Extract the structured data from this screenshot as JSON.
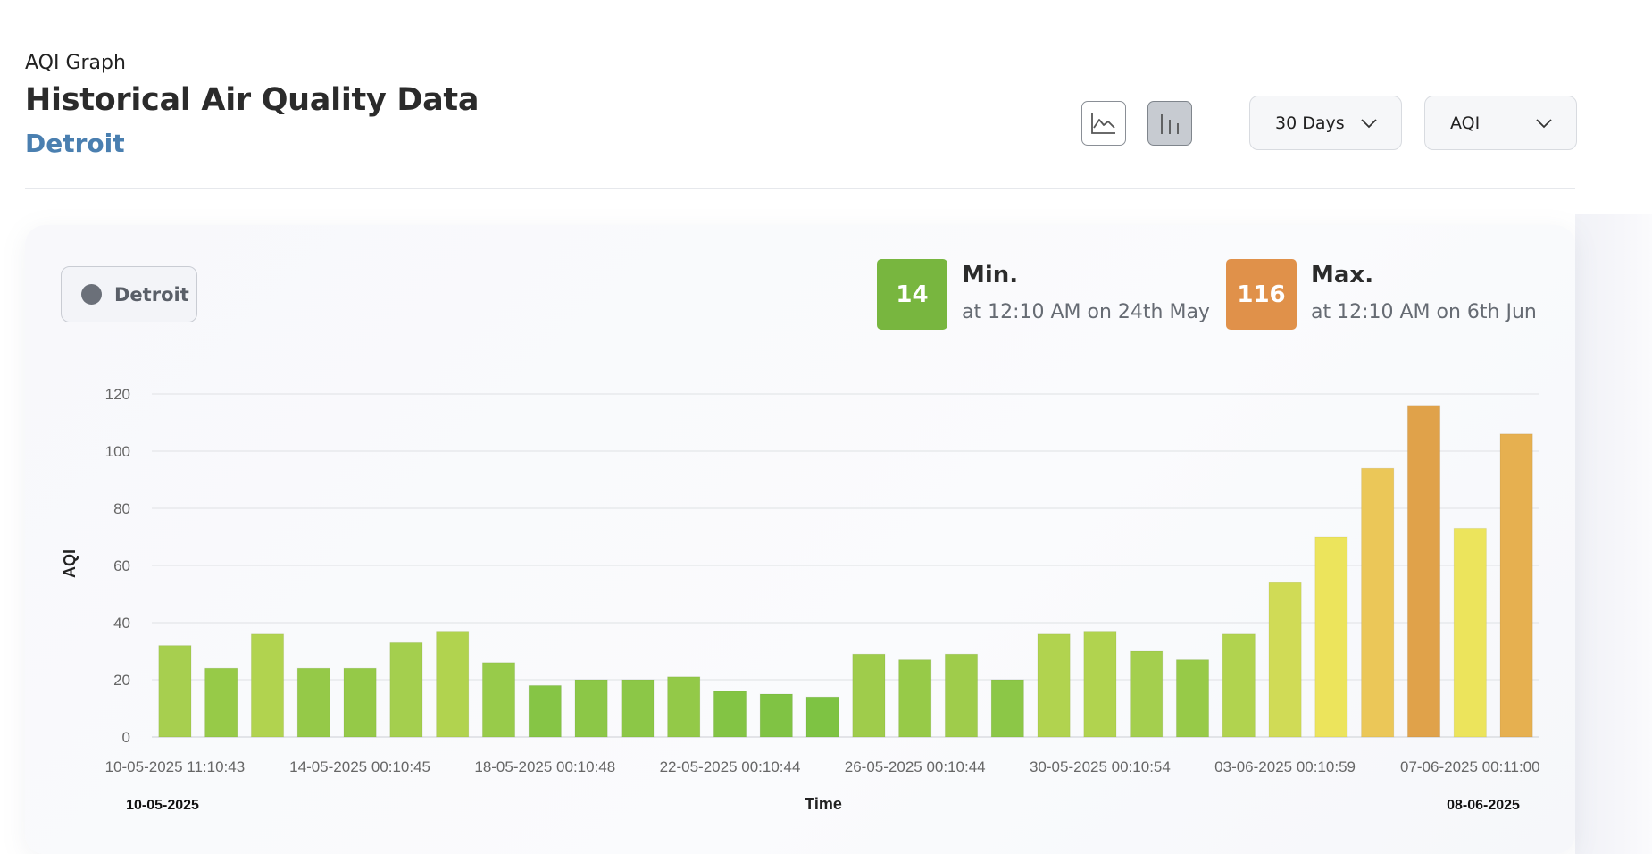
{
  "header": {
    "overline": "AQI Graph",
    "title": "Historical Air Quality Data",
    "city": "Detroit"
  },
  "controls": {
    "line_chart_icon": "line-chart-icon",
    "bar_chart_icon": "bar-chart-icon",
    "range_select": "30 Days",
    "metric_select": "AQI"
  },
  "legend": {
    "label": "Detroit",
    "color": "#6b7079"
  },
  "stats": {
    "min": {
      "value": "14",
      "title": "Min.",
      "subtitle": "at 12:10 AM on 24th May",
      "color": "#78b63f"
    },
    "max": {
      "value": "116",
      "title": "Max.",
      "subtitle": "at 12:10 AM on 6th Jun",
      "color": "#e0914a"
    }
  },
  "chart_data": {
    "type": "bar",
    "ylabel": "AQI",
    "xlabel": "Time",
    "ylim": [
      0,
      120
    ],
    "yticks": [
      0,
      20,
      40,
      60,
      80,
      100,
      120
    ],
    "grid": true,
    "x_tick_labels": [
      "10-05-2025 11:10:43",
      "14-05-2025 00:10:45",
      "18-05-2025 00:10:48",
      "22-05-2025 00:10:44",
      "26-05-2025 00:10:44",
      "30-05-2025 00:10:54",
      "03-06-2025 00:10:59",
      "07-06-2025 00:11:00"
    ],
    "range_start": "10-05-2025",
    "range_end": "08-06-2025",
    "series": [
      {
        "name": "Detroit",
        "values": [
          32,
          24,
          36,
          24,
          24,
          33,
          37,
          26,
          18,
          20,
          20,
          21,
          16,
          15,
          14,
          29,
          27,
          29,
          20,
          36,
          37,
          30,
          27,
          36,
          54,
          70,
          94,
          116,
          73,
          106
        ],
        "colors": [
          "#a7cf4f",
          "#97ca48",
          "#b1d34f",
          "#95c948",
          "#95c948",
          "#a4cf4e",
          "#b1d34f",
          "#98cb4a",
          "#86c545",
          "#8cc747",
          "#8cc747",
          "#93c948",
          "#83c444",
          "#80c344",
          "#7ec343",
          "#9fcc4b",
          "#97ca48",
          "#9fcc4b",
          "#8cc747",
          "#b1d34f",
          "#b1d34f",
          "#a4cf4e",
          "#97ca48",
          "#b1d34f",
          "#d0db56",
          "#ece45c",
          "#ebc758",
          "#e0a24a",
          "#ece45c",
          "#e6b050"
        ]
      }
    ]
  }
}
